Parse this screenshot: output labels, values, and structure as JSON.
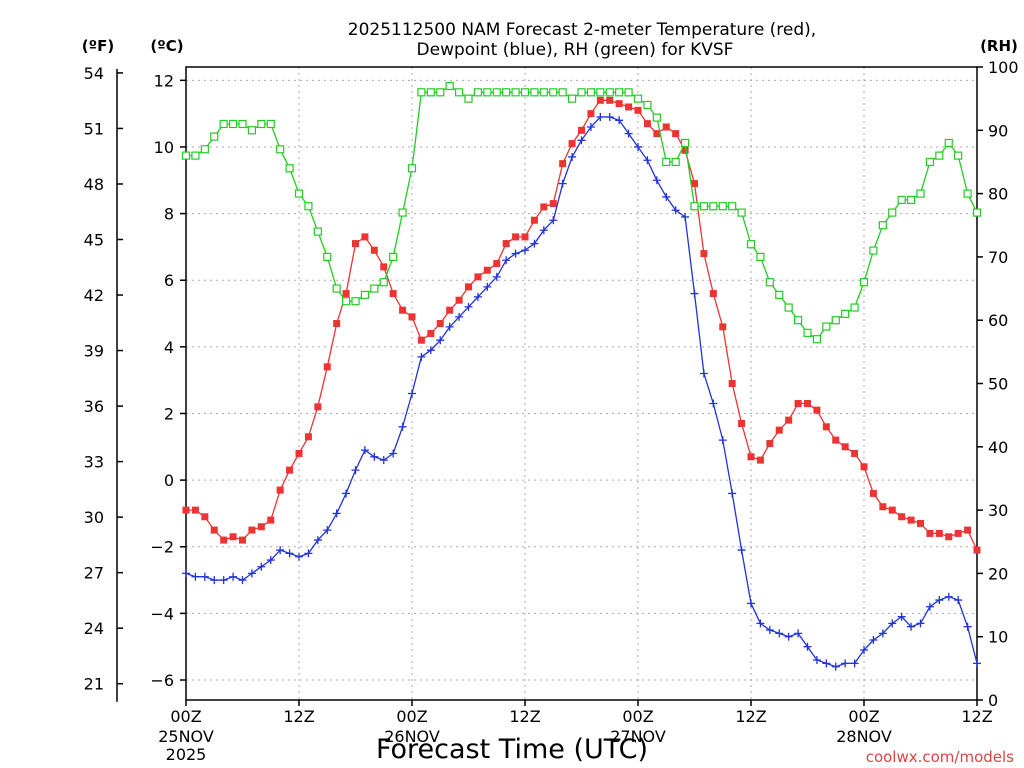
{
  "chart_data": {
    "type": "line",
    "title": "2025112500 NAM Forecast 2-meter Temperature (red),",
    "subtitle": "Dewpoint (blue), RH (green) for KVSF",
    "xlabel": "Forecast Time (UTC)",
    "watermark": "coolwx.com/models",
    "unit_f": "(ºF)",
    "unit_c": "(ºC)",
    "unit_rh": "(RH)",
    "x_ticks": [
      {
        "hour": 0,
        "label": "00Z"
      },
      {
        "hour": 12,
        "label": "12Z"
      },
      {
        "hour": 24,
        "label": "00Z"
      },
      {
        "hour": 36,
        "label": "12Z"
      },
      {
        "hour": 48,
        "label": "00Z"
      },
      {
        "hour": 60,
        "label": "12Z"
      },
      {
        "hour": 72,
        "label": "00Z"
      },
      {
        "hour": 84,
        "label": "12Z"
      }
    ],
    "date_labels": [
      {
        "hour": 0,
        "lines": [
          "25NOV",
          "2025"
        ]
      },
      {
        "hour": 24,
        "lines": [
          "26NOV"
        ]
      },
      {
        "hour": 48,
        "lines": [
          "27NOV"
        ]
      },
      {
        "hour": 72,
        "lines": [
          "28NOV"
        ]
      }
    ],
    "xlim": [
      0,
      84
    ],
    "ylim_c": [
      -6.6,
      12.4
    ],
    "ylim_rh": [
      0,
      100
    ],
    "yticks_c": [
      -6,
      -4,
      -2,
      0,
      2,
      4,
      6,
      8,
      10,
      12
    ],
    "yticks_f": [
      21,
      24,
      27,
      30,
      33,
      36,
      39,
      42,
      45,
      48,
      51,
      54
    ],
    "yticks_rh": [
      0,
      10,
      20,
      30,
      40,
      50,
      60,
      70,
      80,
      90,
      100
    ],
    "grid": true,
    "series": [
      {
        "name": "Temperature (red)",
        "axis": "c",
        "color": "#ee3333",
        "marker": "filled-square",
        "points": [
          [
            0,
            -0.9
          ],
          [
            1,
            -0.9
          ],
          [
            2,
            -1.1
          ],
          [
            3,
            -1.5
          ],
          [
            4,
            -1.8
          ],
          [
            5,
            -1.7
          ],
          [
            6,
            -1.8
          ],
          [
            7,
            -1.5
          ],
          [
            8,
            -1.4
          ],
          [
            9,
            -1.2
          ],
          [
            10,
            -0.3
          ],
          [
            11,
            0.3
          ],
          [
            12,
            0.8
          ],
          [
            13,
            1.3
          ],
          [
            14,
            2.2
          ],
          [
            15,
            3.4
          ],
          [
            16,
            4.7
          ],
          [
            17,
            5.6
          ],
          [
            18,
            7.1
          ],
          [
            19,
            7.3
          ],
          [
            20,
            6.9
          ],
          [
            21,
            6.4
          ],
          [
            22,
            5.6
          ],
          [
            23,
            5.1
          ],
          [
            24,
            4.9
          ],
          [
            25,
            4.2
          ],
          [
            26,
            4.4
          ],
          [
            27,
            4.7
          ],
          [
            28,
            5.1
          ],
          [
            29,
            5.4
          ],
          [
            30,
            5.8
          ],
          [
            31,
            6.1
          ],
          [
            32,
            6.3
          ],
          [
            33,
            6.5
          ],
          [
            34,
            7.1
          ],
          [
            35,
            7.3
          ],
          [
            36,
            7.3
          ],
          [
            37,
            7.8
          ],
          [
            38,
            8.2
          ],
          [
            39,
            8.3
          ],
          [
            40,
            9.5
          ],
          [
            41,
            10.1
          ],
          [
            42,
            10.5
          ],
          [
            43,
            11.0
          ],
          [
            44,
            11.4
          ],
          [
            45,
            11.4
          ],
          [
            46,
            11.3
          ],
          [
            47,
            11.2
          ],
          [
            48,
            11.1
          ],
          [
            49,
            10.7
          ],
          [
            50,
            10.4
          ],
          [
            51,
            10.6
          ],
          [
            52,
            10.4
          ],
          [
            53,
            9.9
          ],
          [
            54,
            8.9
          ],
          [
            55,
            6.8
          ],
          [
            56,
            5.6
          ],
          [
            57,
            4.6
          ],
          [
            58,
            2.9
          ],
          [
            59,
            1.7
          ],
          [
            60,
            0.7
          ],
          [
            61,
            0.6
          ],
          [
            62,
            1.1
          ],
          [
            63,
            1.5
          ],
          [
            64,
            1.8
          ],
          [
            65,
            2.3
          ],
          [
            66,
            2.3
          ],
          [
            67,
            2.1
          ],
          [
            68,
            1.6
          ],
          [
            69,
            1.2
          ],
          [
            70,
            1.0
          ],
          [
            71,
            0.8
          ],
          [
            72,
            0.4
          ],
          [
            73,
            -0.4
          ],
          [
            74,
            -0.8
          ],
          [
            75,
            -0.9
          ],
          [
            76,
            -1.1
          ],
          [
            77,
            -1.2
          ],
          [
            78,
            -1.3
          ],
          [
            79,
            -1.6
          ],
          [
            80,
            -1.6
          ],
          [
            81,
            -1.7
          ],
          [
            82,
            -1.6
          ],
          [
            83,
            -1.5
          ],
          [
            84,
            -2.1
          ]
        ]
      },
      {
        "name": "Dewpoint (blue)",
        "axis": "c",
        "color": "#2233dd",
        "marker": "plus",
        "points": [
          [
            0,
            -2.8
          ],
          [
            1,
            -2.9
          ],
          [
            2,
            -2.9
          ],
          [
            3,
            -3.0
          ],
          [
            4,
            -3.0
          ],
          [
            5,
            -2.9
          ],
          [
            6,
            -3.0
          ],
          [
            7,
            -2.8
          ],
          [
            8,
            -2.6
          ],
          [
            9,
            -2.4
          ],
          [
            10,
            -2.1
          ],
          [
            11,
            -2.2
          ],
          [
            12,
            -2.3
          ],
          [
            13,
            -2.2
          ],
          [
            14,
            -1.8
          ],
          [
            15,
            -1.5
          ],
          [
            16,
            -1.0
          ],
          [
            17,
            -0.4
          ],
          [
            18,
            0.3
          ],
          [
            19,
            0.9
          ],
          [
            20,
            0.7
          ],
          [
            21,
            0.6
          ],
          [
            22,
            0.8
          ],
          [
            23,
            1.6
          ],
          [
            24,
            2.6
          ],
          [
            25,
            3.7
          ],
          [
            26,
            3.9
          ],
          [
            27,
            4.2
          ],
          [
            28,
            4.6
          ],
          [
            29,
            4.9
          ],
          [
            30,
            5.2
          ],
          [
            31,
            5.5
          ],
          [
            32,
            5.8
          ],
          [
            33,
            6.1
          ],
          [
            34,
            6.6
          ],
          [
            35,
            6.8
          ],
          [
            36,
            6.9
          ],
          [
            37,
            7.1
          ],
          [
            38,
            7.5
          ],
          [
            39,
            7.8
          ],
          [
            40,
            8.9
          ],
          [
            41,
            9.7
          ],
          [
            42,
            10.2
          ],
          [
            43,
            10.6
          ],
          [
            44,
            10.9
          ],
          [
            45,
            10.9
          ],
          [
            46,
            10.8
          ],
          [
            47,
            10.4
          ],
          [
            48,
            10.0
          ],
          [
            49,
            9.6
          ],
          [
            50,
            9.0
          ],
          [
            51,
            8.5
          ],
          [
            52,
            8.1
          ],
          [
            53,
            7.9
          ],
          [
            54,
            5.6
          ],
          [
            55,
            3.2
          ],
          [
            56,
            2.3
          ],
          [
            57,
            1.2
          ],
          [
            58,
            -0.4
          ],
          [
            59,
            -2.1
          ],
          [
            60,
            -3.7
          ],
          [
            61,
            -4.3
          ],
          [
            62,
            -4.5
          ],
          [
            63,
            -4.6
          ],
          [
            64,
            -4.7
          ],
          [
            65,
            -4.6
          ],
          [
            66,
            -5.0
          ],
          [
            67,
            -5.4
          ],
          [
            68,
            -5.5
          ],
          [
            69,
            -5.6
          ],
          [
            70,
            -5.5
          ],
          [
            71,
            -5.5
          ],
          [
            72,
            -5.1
          ],
          [
            73,
            -4.8
          ],
          [
            74,
            -4.6
          ],
          [
            75,
            -4.3
          ],
          [
            76,
            -4.1
          ],
          [
            77,
            -4.4
          ],
          [
            78,
            -4.3
          ],
          [
            79,
            -3.8
          ],
          [
            80,
            -3.6
          ],
          [
            81,
            -3.5
          ],
          [
            82,
            -3.6
          ],
          [
            83,
            -4.4
          ],
          [
            84,
            -5.5
          ]
        ]
      },
      {
        "name": "RH (green)",
        "axis": "rh",
        "color": "#22cc22",
        "marker": "open-square",
        "points": [
          [
            0,
            86
          ],
          [
            1,
            86
          ],
          [
            2,
            87
          ],
          [
            3,
            89
          ],
          [
            4,
            91
          ],
          [
            5,
            91
          ],
          [
            6,
            91
          ],
          [
            7,
            90
          ],
          [
            8,
            91
          ],
          [
            9,
            91
          ],
          [
            10,
            87
          ],
          [
            11,
            84
          ],
          [
            12,
            80
          ],
          [
            13,
            78
          ],
          [
            14,
            74
          ],
          [
            15,
            70
          ],
          [
            16,
            65
          ],
          [
            17,
            63
          ],
          [
            18,
            63
          ],
          [
            19,
            64
          ],
          [
            20,
            65
          ],
          [
            21,
            66
          ],
          [
            22,
            70
          ],
          [
            23,
            77
          ],
          [
            24,
            84
          ],
          [
            25,
            96
          ],
          [
            26,
            96
          ],
          [
            27,
            96
          ],
          [
            28,
            97
          ],
          [
            29,
            96
          ],
          [
            30,
            95
          ],
          [
            31,
            96
          ],
          [
            32,
            96
          ],
          [
            33,
            96
          ],
          [
            34,
            96
          ],
          [
            35,
            96
          ],
          [
            36,
            96
          ],
          [
            37,
            96
          ],
          [
            38,
            96
          ],
          [
            39,
            96
          ],
          [
            40,
            96
          ],
          [
            41,
            95
          ],
          [
            42,
            96
          ],
          [
            43,
            96
          ],
          [
            44,
            96
          ],
          [
            45,
            96
          ],
          [
            46,
            96
          ],
          [
            47,
            96
          ],
          [
            48,
            95
          ],
          [
            49,
            94
          ],
          [
            50,
            92
          ],
          [
            51,
            85
          ],
          [
            52,
            85
          ],
          [
            53,
            88
          ],
          [
            54,
            78
          ],
          [
            55,
            78
          ],
          [
            56,
            78
          ],
          [
            57,
            78
          ],
          [
            58,
            78
          ],
          [
            59,
            77
          ],
          [
            60,
            72
          ],
          [
            61,
            70
          ],
          [
            62,
            66
          ],
          [
            63,
            64
          ],
          [
            64,
            62
          ],
          [
            65,
            60
          ],
          [
            66,
            58
          ],
          [
            67,
            57
          ],
          [
            68,
            59
          ],
          [
            69,
            60
          ],
          [
            70,
            61
          ],
          [
            71,
            62
          ],
          [
            72,
            66
          ],
          [
            73,
            71
          ],
          [
            74,
            75
          ],
          [
            75,
            77
          ],
          [
            76,
            79
          ],
          [
            77,
            79
          ],
          [
            78,
            80
          ],
          [
            79,
            85
          ],
          [
            80,
            86
          ],
          [
            81,
            88
          ],
          [
            82,
            86
          ],
          [
            83,
            80
          ],
          [
            84,
            77
          ]
        ]
      }
    ]
  }
}
